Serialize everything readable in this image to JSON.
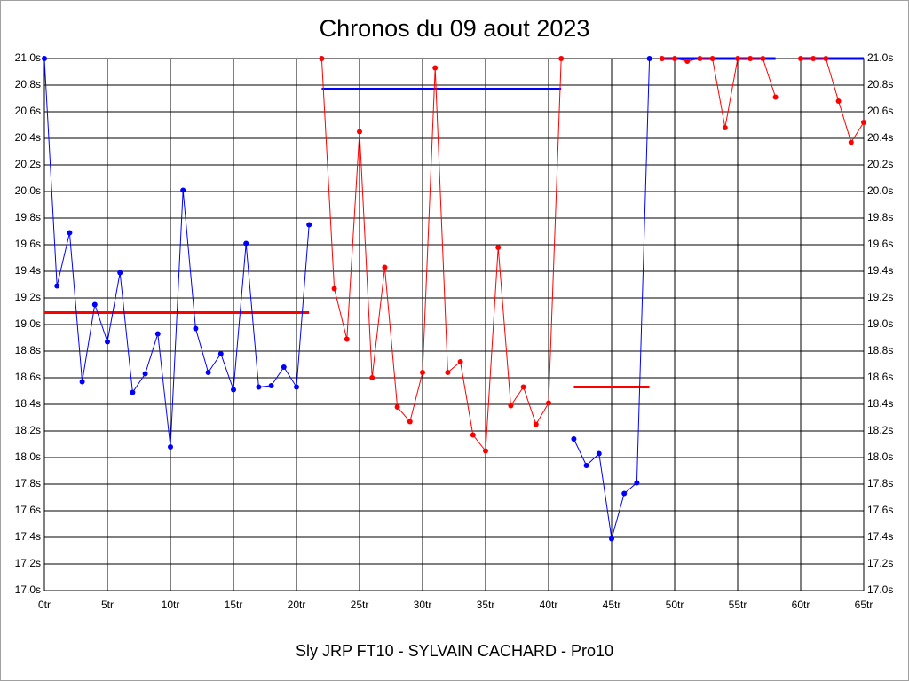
{
  "chart_data": {
    "type": "line",
    "title": "Chronos du 09 aout 2023",
    "x_label": "Sly JRP FT10 - SYLVAIN CACHARD - Pro10",
    "x": [
      0,
      1,
      2,
      3,
      4,
      5,
      6,
      7,
      8,
      9,
      10,
      11,
      12,
      13,
      14,
      15,
      16,
      17,
      18,
      19,
      20,
      21,
      22,
      23,
      24,
      25,
      26,
      27,
      28,
      29,
      30,
      31,
      32,
      33,
      34,
      35,
      36,
      37,
      38,
      39,
      40,
      41,
      42,
      43,
      44,
      45,
      46,
      47,
      48,
      49,
      50,
      51,
      52,
      53,
      54,
      55,
      56,
      57,
      58,
      59,
      60,
      61,
      62,
      63,
      64,
      65
    ],
    "series": [
      {
        "color": "#0000ff",
        "values": [
          21.0,
          19.29,
          19.69,
          18.57,
          19.15,
          18.87,
          19.39,
          18.49,
          18.63,
          18.93,
          18.08,
          20.01,
          18.97,
          18.64,
          18.78,
          18.51,
          19.61,
          18.53,
          18.54,
          18.68,
          18.53,
          19.75,
          null,
          null,
          null,
          null,
          null,
          null,
          null,
          null,
          null,
          null,
          null,
          null,
          null,
          null,
          null,
          null,
          null,
          null,
          null,
          null,
          18.14,
          17.94,
          18.03,
          17.39,
          17.73,
          17.81,
          21.0,
          null,
          null,
          null,
          null,
          null,
          null,
          null,
          null,
          null,
          null,
          null,
          null,
          null,
          null,
          null,
          null,
          null
        ]
      },
      {
        "color": "#ff0000",
        "values": [
          null,
          null,
          null,
          null,
          null,
          null,
          null,
          null,
          null,
          null,
          null,
          null,
          null,
          null,
          null,
          null,
          null,
          null,
          null,
          null,
          null,
          null,
          21.0,
          19.27,
          18.89,
          20.45,
          18.6,
          19.43,
          18.38,
          18.27,
          18.64,
          20.93,
          18.64,
          18.72,
          18.17,
          18.05,
          19.58,
          18.39,
          18.53,
          18.25,
          18.41,
          21.0,
          null,
          null,
          null,
          null,
          null,
          null,
          null,
          21.0,
          21.0,
          20.98,
          21.0,
          21.0,
          20.48,
          21.0,
          21.0,
          21.0,
          20.71,
          null,
          21.0,
          21.0,
          21.0,
          20.68,
          20.37,
          20.52
        ]
      }
    ],
    "averages": [
      {
        "color": "#ff0000",
        "x": [
          0,
          21
        ],
        "value": 19.09
      },
      {
        "color": "#0000ff",
        "x": [
          22,
          41
        ],
        "value": 20.77
      },
      {
        "color": "#ff0000",
        "x": [
          42,
          48
        ],
        "value": 18.53
      },
      {
        "color": "#0000ff",
        "x": [
          49,
          58
        ],
        "value": 21.0
      },
      {
        "color": "#0000ff",
        "x": [
          60,
          65
        ],
        "value": 21.0
      }
    ],
    "xlim": [
      0,
      65
    ],
    "xticks": [
      {
        "value": 0,
        "label": "0tr"
      },
      {
        "value": 5,
        "label": "5tr"
      },
      {
        "value": 10,
        "label": "10tr"
      },
      {
        "value": 15,
        "label": "15tr"
      },
      {
        "value": 20,
        "label": "20tr"
      },
      {
        "value": 25,
        "label": "25tr"
      },
      {
        "value": 30,
        "label": "30tr"
      },
      {
        "value": 35,
        "label": "35tr"
      },
      {
        "value": 40,
        "label": "40tr"
      },
      {
        "value": 45,
        "label": "45tr"
      },
      {
        "value": 50,
        "label": "50tr"
      },
      {
        "value": 55,
        "label": "55tr"
      },
      {
        "value": 60,
        "label": "60tr"
      },
      {
        "value": 65,
        "label": "65tr"
      }
    ],
    "ylim": [
      17.0,
      21.0
    ],
    "yticks": [
      {
        "value": 17.0,
        "label": "17.0s"
      },
      {
        "value": 17.2,
        "label": "17.2s"
      },
      {
        "value": 17.4,
        "label": "17.4s"
      },
      {
        "value": 17.6,
        "label": "17.6s"
      },
      {
        "value": 17.8,
        "label": "17.8s"
      },
      {
        "value": 18.0,
        "label": "18.0s"
      },
      {
        "value": 18.2,
        "label": "18.2s"
      },
      {
        "value": 18.4,
        "label": "18.4s"
      },
      {
        "value": 18.6,
        "label": "18.6s"
      },
      {
        "value": 18.8,
        "label": "18.8s"
      },
      {
        "value": 19.0,
        "label": "19.0s"
      },
      {
        "value": 19.2,
        "label": "19.2s"
      },
      {
        "value": 19.4,
        "label": "19.4s"
      },
      {
        "value": 19.6,
        "label": "19.6s"
      },
      {
        "value": 19.8,
        "label": "19.8s"
      },
      {
        "value": 20.0,
        "label": "20.0s"
      },
      {
        "value": 20.2,
        "label": "20.2s"
      },
      {
        "value": 20.4,
        "label": "20.4s"
      },
      {
        "value": 20.6,
        "label": "20.6s"
      },
      {
        "value": 20.8,
        "label": "20.8s"
      },
      {
        "value": 21.0,
        "label": "21.0s"
      }
    ],
    "grid": true
  }
}
